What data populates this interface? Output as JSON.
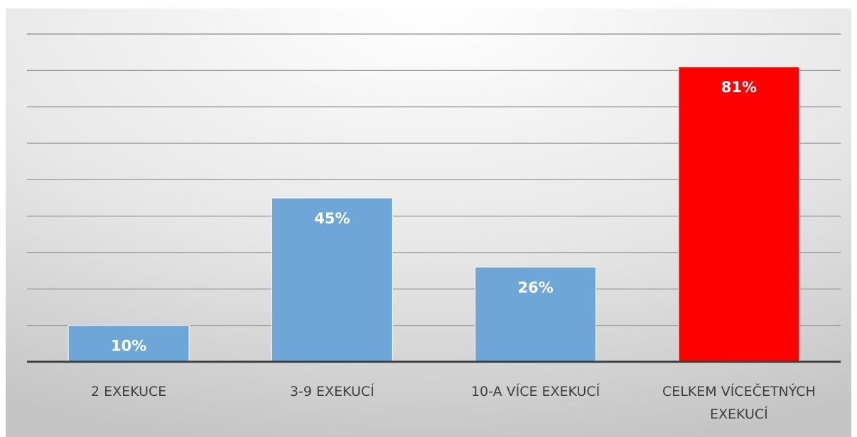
{
  "chart_data": {
    "type": "bar",
    "categories": [
      "2 EXEKUCE",
      "3-9 EXEKUCÍ",
      "10-A VÍCE EXEKUCÍ",
      "CELKEM VÍCEČETNÝCH EXEKUCÍ"
    ],
    "values": [
      10,
      45,
      26,
      81
    ],
    "value_labels": [
      "10%",
      "45%",
      "26%",
      "81%"
    ],
    "ylim": [
      0,
      90
    ],
    "grid": true,
    "bar_colors": [
      "#6fa6d8",
      "#6fa6d8",
      "#6fa6d8",
      "#ff0000"
    ],
    "background": "#dedede"
  }
}
